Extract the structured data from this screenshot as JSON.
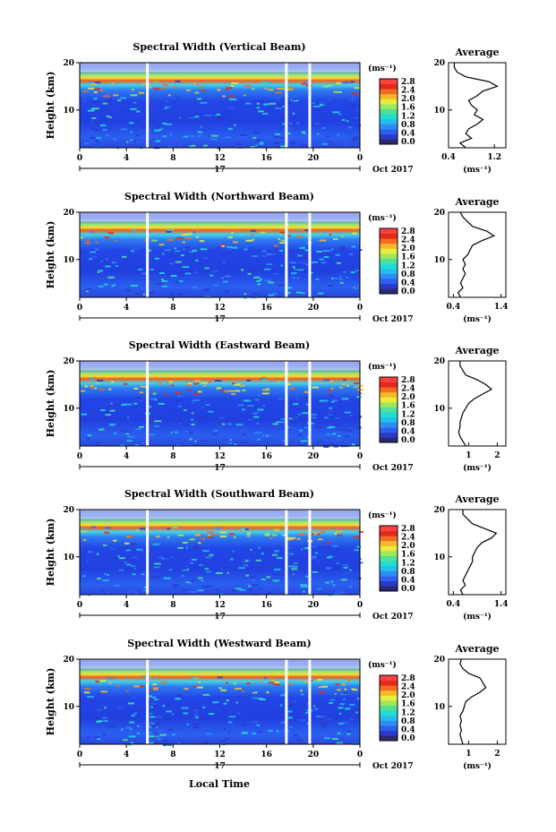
{
  "figure": {
    "x_axis_label": "Local Time",
    "date_label": "Oct 2017",
    "day_label": "17",
    "colorbar_unit": "(ms⁻¹)",
    "average_title": "Average",
    "average_unit": "(ms⁻¹)"
  },
  "colors": {
    "scale": [
      "#2a2a6e",
      "#2b39c9",
      "#2f5ff0",
      "#2f8cf5",
      "#23bdf0",
      "#22dcd0",
      "#4fe09a",
      "#9ee65c",
      "#e8ec3c",
      "#f8b72a",
      "#f46b22",
      "#e02a1c",
      "#ff4040"
    ],
    "white_gap": "#ffffff"
  },
  "chart_data": [
    {
      "type": "heatmap",
      "title": "Spectral Width (Vertical Beam)",
      "ylabel": "Height (km)",
      "xlim": [
        0,
        24
      ],
      "ylim": [
        2,
        20
      ],
      "x_ticks": [
        "0",
        "4",
        "8",
        "12",
        "16",
        "20",
        "0"
      ],
      "y_ticks": [
        "10",
        "20"
      ],
      "colorbar": {
        "ticks": [
          "0.0",
          "0.4",
          "0.8",
          "1.2",
          "1.6",
          "2.0",
          "2.4",
          "2.8"
        ],
        "range": [
          0,
          2.8
        ]
      },
      "gaps_hours": [
        5.8,
        17.7,
        19.7
      ],
      "average": {
        "title": "Average",
        "xlim": [
          0.4,
          1.4
        ],
        "x_ticks": [
          "0.4",
          "1.2"
        ],
        "ylim": [
          2,
          20
        ],
        "profile": [
          [
            2,
            0.7
          ],
          [
            3,
            0.6
          ],
          [
            4,
            0.8
          ],
          [
            5,
            0.7
          ],
          [
            6,
            0.75
          ],
          [
            7,
            0.9
          ],
          [
            8,
            1.0
          ],
          [
            9,
            0.85
          ],
          [
            10,
            0.9
          ],
          [
            11,
            0.8
          ],
          [
            12,
            0.75
          ],
          [
            13,
            0.9
          ],
          [
            14,
            1.0
          ],
          [
            15,
            1.25
          ],
          [
            16,
            1.1
          ],
          [
            17,
            0.7
          ],
          [
            18,
            0.55
          ],
          [
            19,
            0.5
          ],
          [
            20,
            0.5
          ]
        ]
      }
    },
    {
      "type": "heatmap",
      "title": "Spectral Width (Northward Beam)",
      "ylabel": "Height (km)",
      "xlim": [
        0,
        24
      ],
      "ylim": [
        2,
        20
      ],
      "x_ticks": [
        "0",
        "4",
        "8",
        "12",
        "16",
        "20",
        "0"
      ],
      "y_ticks": [
        "10",
        "20"
      ],
      "colorbar": {
        "ticks": [
          "0.0",
          "0.4",
          "0.8",
          "1.2",
          "1.6",
          "2.0",
          "2.4",
          "2.8"
        ],
        "range": [
          0,
          2.8
        ]
      },
      "gaps_hours": [
        5.8,
        17.7,
        19.7
      ],
      "average": {
        "title": "Average",
        "xlim": [
          0.3,
          1.5
        ],
        "x_ticks": [
          "0.4",
          "1.4"
        ],
        "ylim": [
          2,
          20
        ],
        "profile": [
          [
            2,
            0.55
          ],
          [
            3,
            0.5
          ],
          [
            4,
            0.6
          ],
          [
            5,
            0.55
          ],
          [
            6,
            0.6
          ],
          [
            7,
            0.65
          ],
          [
            8,
            0.6
          ],
          [
            9,
            0.65
          ],
          [
            10,
            0.6
          ],
          [
            11,
            0.7
          ],
          [
            12,
            0.75
          ],
          [
            13,
            0.8
          ],
          [
            14,
            1.0
          ],
          [
            15,
            1.25
          ],
          [
            16,
            1.1
          ],
          [
            17,
            0.8
          ],
          [
            18,
            0.7
          ],
          [
            19,
            0.6
          ],
          [
            20,
            0.55
          ]
        ]
      }
    },
    {
      "type": "heatmap",
      "title": "Spectral Width (Eastward Beam)",
      "ylabel": "Height (km)",
      "xlim": [
        0,
        24
      ],
      "ylim": [
        2,
        20
      ],
      "x_ticks": [
        "0",
        "4",
        "8",
        "12",
        "16",
        "20",
        "0"
      ],
      "y_ticks": [
        "10",
        "20"
      ],
      "colorbar": {
        "ticks": [
          "0.0",
          "0.4",
          "0.8",
          "1.2",
          "1.6",
          "2.0",
          "2.4",
          "2.8"
        ],
        "range": [
          0,
          2.8
        ]
      },
      "gaps_hours": [
        5.8,
        17.7,
        19.7
      ],
      "average": {
        "title": "Average",
        "xlim": [
          0.3,
          2.3
        ],
        "x_ticks": [
          "1",
          "2"
        ],
        "ylim": [
          2,
          20
        ],
        "profile": [
          [
            2,
            0.9
          ],
          [
            3,
            0.8
          ],
          [
            4,
            0.7
          ],
          [
            5,
            0.65
          ],
          [
            6,
            0.7
          ],
          [
            7,
            0.7
          ],
          [
            8,
            0.75
          ],
          [
            9,
            0.8
          ],
          [
            10,
            0.9
          ],
          [
            11,
            1.0
          ],
          [
            12,
            1.2
          ],
          [
            13,
            1.5
          ],
          [
            14,
            1.8
          ],
          [
            15,
            1.6
          ],
          [
            16,
            1.3
          ],
          [
            17,
            0.9
          ],
          [
            18,
            0.8
          ],
          [
            19,
            0.7
          ],
          [
            20,
            0.7
          ]
        ]
      }
    },
    {
      "type": "heatmap",
      "title": "Spectral Width (Southward Beam)",
      "ylabel": "Height (km)",
      "xlim": [
        0,
        24
      ],
      "ylim": [
        2,
        20
      ],
      "x_ticks": [
        "0",
        "4",
        "8",
        "12",
        "16",
        "20",
        "0"
      ],
      "y_ticks": [
        "10",
        "20"
      ],
      "colorbar": {
        "ticks": [
          "0.0",
          "0.4",
          "0.8",
          "1.2",
          "1.6",
          "2.0",
          "2.4",
          "2.8"
        ],
        "range": [
          0,
          2.8
        ]
      },
      "gaps_hours": [
        5.8,
        17.7,
        19.7
      ],
      "average": {
        "title": "Average",
        "xlim": [
          0.3,
          1.5
        ],
        "x_ticks": [
          "0.4",
          "1.4"
        ],
        "ylim": [
          2,
          20
        ],
        "profile": [
          [
            2,
            0.6
          ],
          [
            3,
            0.55
          ],
          [
            4,
            0.65
          ],
          [
            5,
            0.6
          ],
          [
            6,
            0.65
          ],
          [
            7,
            0.7
          ],
          [
            8,
            0.75
          ],
          [
            9,
            0.8
          ],
          [
            10,
            0.8
          ],
          [
            11,
            0.85
          ],
          [
            12,
            0.9
          ],
          [
            13,
            1.0
          ],
          [
            14,
            1.2
          ],
          [
            15,
            1.3
          ],
          [
            16,
            1.05
          ],
          [
            17,
            0.8
          ],
          [
            18,
            0.7
          ],
          [
            19,
            0.6
          ],
          [
            20,
            0.6
          ]
        ]
      }
    },
    {
      "type": "heatmap",
      "title": "Spectral Width (Westward Beam)",
      "ylabel": "Height (km)",
      "xlim": [
        0,
        24
      ],
      "ylim": [
        2,
        20
      ],
      "x_ticks": [
        "0",
        "4",
        "8",
        "12",
        "16",
        "20",
        "0"
      ],
      "y_ticks": [
        "10",
        "20"
      ],
      "colorbar": {
        "ticks": [
          "0.0",
          "0.4",
          "0.8",
          "1.2",
          "1.6",
          "2.0",
          "2.4",
          "2.8"
        ],
        "range": [
          0,
          2.8
        ]
      },
      "gaps_hours": [
        5.8,
        17.7,
        19.7
      ],
      "average": {
        "title": "Average",
        "xlim": [
          0.3,
          2.3
        ],
        "x_ticks": [
          "1",
          "2"
        ],
        "ylim": [
          2,
          20
        ],
        "profile": [
          [
            2,
            0.8
          ],
          [
            3,
            0.75
          ],
          [
            4,
            0.7
          ],
          [
            5,
            0.75
          ],
          [
            6,
            0.7
          ],
          [
            7,
            0.75
          ],
          [
            8,
            0.7
          ],
          [
            9,
            0.8
          ],
          [
            10,
            0.85
          ],
          [
            11,
            0.9
          ],
          [
            12,
            1.1
          ],
          [
            13,
            1.4
          ],
          [
            14,
            1.6
          ],
          [
            15,
            1.5
          ],
          [
            16,
            1.4
          ],
          [
            17,
            1.0
          ],
          [
            18,
            0.8
          ],
          [
            19,
            0.7
          ],
          [
            20,
            0.75
          ]
        ]
      }
    }
  ]
}
